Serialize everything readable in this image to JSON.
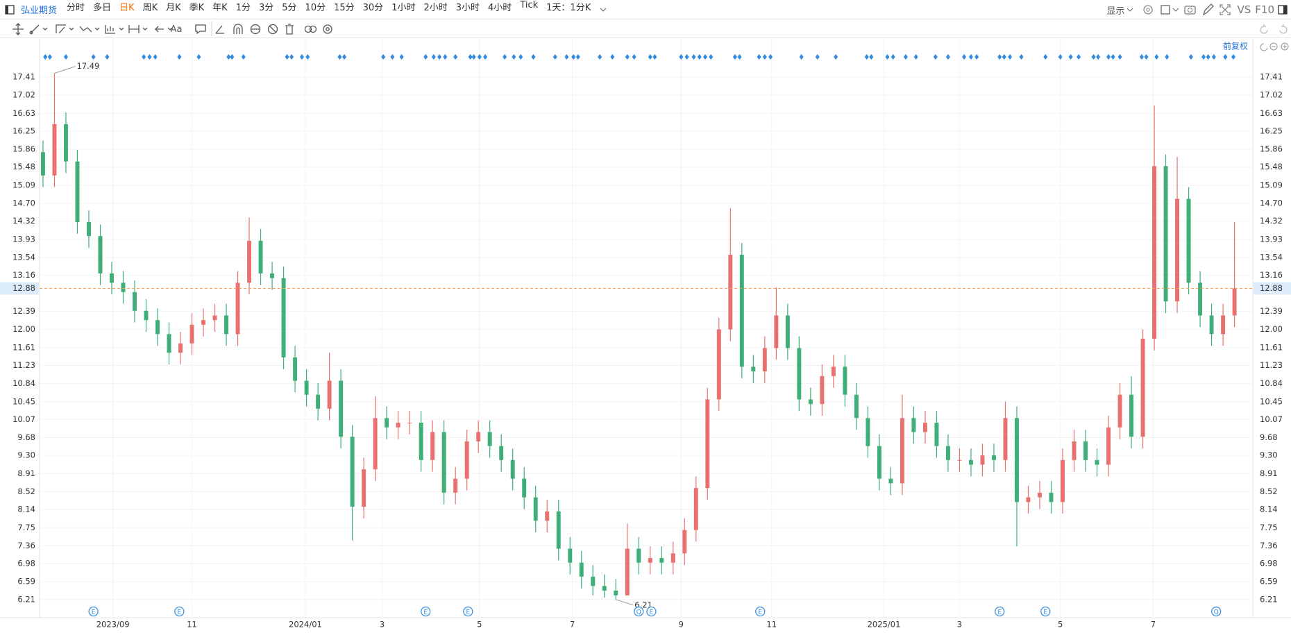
{
  "toolbar": {
    "symbol": "弘业期货",
    "periods": [
      "分时",
      "多日",
      "日K",
      "周K",
      "月K",
      "季K",
      "年K",
      "1分",
      "3分",
      "5分",
      "10分",
      "15分",
      "30分",
      "1小时",
      "2小时",
      "3小时",
      "4小时",
      "Tick",
      "1天：1分K"
    ],
    "active_period": 2,
    "display": "显示",
    "vs": "VS",
    "f10": "F10",
    "text_tool": "Aa"
  },
  "chart_data": {
    "type": "candlestick",
    "adjustment": "前复权",
    "up_color": "#e8716f",
    "down_color": "#3fae78",
    "grid": true,
    "ohlc": {
      "open": [
        15.8,
        15.3,
        16.4,
        15.6,
        14.3,
        14.0,
        13.2,
        13.0,
        12.8,
        12.4,
        12.2,
        11.9,
        11.5,
        11.7,
        12.1,
        12.2,
        12.3,
        11.9,
        13.0,
        13.9,
        13.2,
        13.1,
        11.4,
        10.9,
        10.6,
        10.3,
        10.9,
        9.7,
        8.2,
        9.0,
        10.1,
        9.9,
        10.0,
        10.0,
        9.2,
        9.8,
        8.5,
        8.8,
        9.6,
        9.8,
        9.5,
        9.2,
        8.8,
        8.4,
        7.9,
        8.1,
        7.3,
        7.0,
        6.7,
        6.5,
        6.4,
        6.3,
        7.3,
        7.0,
        7.1,
        7.0,
        7.2,
        7.7,
        8.6,
        10.5,
        12.0,
        13.6,
        11.2,
        11.1,
        11.6,
        12.3,
        11.6,
        10.5,
        10.4,
        11.0,
        11.2,
        10.6,
        10.1,
        9.5,
        8.8,
        8.7,
        10.1,
        9.8,
        10.0,
        9.5,
        9.2,
        9.2,
        9.1,
        9.3,
        9.2,
        10.1,
        8.3,
        8.4,
        8.5,
        8.3,
        9.2,
        9.6,
        9.2,
        9.1,
        9.9,
        10.6,
        9.7,
        11.8,
        15.5,
        12.6,
        14.8,
        13.0,
        12.3,
        11.9,
        12.3
      ],
      "high": [
        16.05,
        17.49,
        16.65,
        15.85,
        14.55,
        14.25,
        13.45,
        13.25,
        13.05,
        12.65,
        12.45,
        12.15,
        11.95,
        12.35,
        12.45,
        12.55,
        12.55,
        13.25,
        14.4,
        14.15,
        13.45,
        13.35,
        11.65,
        11.15,
        10.85,
        11.5,
        11.15,
        9.95,
        9.25,
        10.57,
        10.35,
        10.25,
        10.25,
        10.25,
        10.05,
        10.05,
        9.05,
        9.85,
        10.05,
        10.05,
        9.75,
        9.45,
        9.05,
        8.65,
        8.35,
        8.35,
        7.55,
        7.25,
        6.95,
        6.75,
        6.65,
        7.84,
        7.55,
        7.35,
        7.35,
        7.45,
        7.95,
        8.85,
        10.75,
        12.25,
        14.6,
        13.85,
        11.45,
        11.85,
        12.9,
        12.55,
        11.85,
        10.75,
        11.25,
        11.45,
        11.45,
        10.85,
        10.35,
        9.75,
        9.05,
        10.6,
        10.35,
        10.25,
        10.25,
        9.75,
        9.45,
        9.45,
        9.55,
        9.55,
        10.45,
        10.35,
        8.65,
        8.75,
        8.75,
        9.45,
        9.85,
        9.85,
        9.45,
        10.15,
        10.85,
        11.0,
        12.0,
        16.8,
        15.75,
        15.7,
        15.05,
        13.25,
        12.55,
        12.55,
        14.3
      ],
      "low": [
        15.05,
        15.05,
        15.35,
        14.05,
        13.75,
        12.95,
        12.75,
        12.55,
        12.15,
        11.95,
        11.65,
        11.25,
        11.25,
        11.45,
        11.85,
        11.95,
        11.65,
        11.65,
        12.75,
        12.95,
        12.85,
        11.15,
        10.65,
        10.35,
        10.05,
        10.05,
        9.45,
        7.48,
        7.95,
        8.75,
        9.65,
        9.65,
        9.75,
        8.95,
        8.95,
        8.25,
        8.25,
        8.55,
        9.35,
        9.25,
        8.95,
        8.55,
        8.15,
        7.65,
        7.65,
        7.05,
        6.75,
        6.45,
        6.3,
        6.25,
        6.21,
        6.3,
        6.75,
        6.75,
        6.75,
        6.75,
        6.95,
        7.45,
        8.35,
        10.25,
        11.75,
        10.95,
        10.85,
        10.85,
        11.35,
        11.35,
        10.25,
        10.15,
        10.15,
        10.75,
        10.35,
        9.85,
        9.25,
        8.55,
        8.45,
        8.45,
        9.55,
        9.55,
        9.25,
        8.95,
        8.95,
        8.85,
        8.85,
        8.95,
        8.95,
        7.35,
        8.05,
        8.15,
        8.05,
        8.05,
        8.95,
        8.95,
        8.85,
        8.85,
        9.65,
        9.45,
        9.45,
        11.55,
        12.35,
        12.35,
        12.75,
        12.05,
        11.65,
        11.65,
        12.05
      ],
      "close": [
        15.3,
        16.4,
        15.6,
        14.3,
        14.0,
        13.2,
        13.0,
        12.8,
        12.4,
        12.2,
        11.9,
        11.5,
        11.7,
        12.1,
        12.2,
        12.3,
        11.9,
        13.0,
        13.9,
        13.2,
        13.1,
        11.4,
        10.9,
        10.6,
        10.3,
        10.9,
        9.7,
        8.2,
        9.0,
        10.1,
        9.9,
        10.0,
        10.0,
        9.2,
        9.8,
        8.5,
        8.8,
        9.6,
        9.8,
        9.5,
        9.2,
        8.8,
        8.4,
        7.9,
        8.1,
        7.3,
        7.0,
        6.7,
        6.5,
        6.4,
        6.3,
        7.3,
        7.0,
        7.1,
        7.0,
        7.2,
        7.7,
        8.6,
        10.5,
        12.0,
        13.6,
        11.2,
        11.1,
        11.6,
        12.3,
        11.6,
        10.5,
        10.4,
        11.0,
        11.2,
        10.6,
        10.1,
        9.5,
        8.8,
        8.7,
        10.1,
        9.8,
        10.0,
        9.5,
        9.2,
        9.2,
        9.1,
        9.3,
        9.2,
        10.1,
        8.3,
        8.4,
        8.5,
        8.3,
        9.2,
        9.6,
        9.2,
        9.1,
        9.9,
        10.6,
        9.7,
        11.8,
        15.5,
        12.6,
        14.8,
        13.0,
        12.3,
        11.9,
        12.3,
        12.88
      ]
    },
    "max_index": 1,
    "min_index": 50,
    "xlim": [
      -0.3,
      105.6
    ],
    "xticks": [
      {
        "value": 6.1,
        "label": "2023/09"
      },
      {
        "value": 13.0,
        "label": "11"
      },
      {
        "value": 22.9,
        "label": "2024/01"
      },
      {
        "value": 29.6,
        "label": "3"
      },
      {
        "value": 38.1,
        "label": "5"
      },
      {
        "value": 46.2,
        "label": "7"
      },
      {
        "value": 55.7,
        "label": "9"
      },
      {
        "value": 63.6,
        "label": "11"
      },
      {
        "value": 73.4,
        "label": "2025/01"
      },
      {
        "value": 80.0,
        "label": "3"
      },
      {
        "value": 88.8,
        "label": "5"
      },
      {
        "value": 96.9,
        "label": "7"
      }
    ],
    "ylim": [
      5.82,
      17.96
    ],
    "yticks": [
      6.21,
      6.59,
      6.98,
      7.36,
      7.75,
      8.14,
      8.52,
      8.91,
      {
        "value": 9.3,
        "label": "9.30"
      },
      9.68,
      10.07,
      10.45,
      10.84,
      11.23,
      11.61,
      {
        "value": 12.0,
        "label": "12.00"
      },
      12.39,
      13.16,
      13.54,
      13.93,
      14.32,
      {
        "value": 14.7,
        "label": "14.70"
      },
      15.09,
      15.48,
      15.86,
      16.25,
      16.63,
      17.02,
      17.41
    ],
    "events": [
      {
        "x": 4.4,
        "label": "E"
      },
      {
        "x": 11.9,
        "label": "E"
      },
      {
        "x": 33.4,
        "label": "E"
      },
      {
        "x": 37.1,
        "label": "E"
      },
      {
        "x": 52.0,
        "label": "Q"
      },
      {
        "x": 53.1,
        "label": "E"
      },
      {
        "x": 62.6,
        "label": "E"
      },
      {
        "x": 83.5,
        "label": "E"
      },
      {
        "x": 87.5,
        "label": "E"
      },
      {
        "x": 102.4,
        "label": "Q"
      }
    ],
    "top_markers": [
      0.2,
      0.6,
      2.0,
      4.4,
      5.6,
      8.8,
      9.3,
      9.8,
      11.9,
      13.6,
      16.2,
      16.5,
      17.5,
      21.3,
      21.7,
      22.6,
      23.1,
      25.9,
      26.3,
      29.7,
      30.5,
      31.3,
      33.4,
      34.1,
      34.6,
      35.1,
      36.0,
      37.3,
      37.6,
      38.1,
      38.6,
      40.3,
      41.1,
      41.7,
      42.8,
      44.7,
      45.7,
      46.3,
      46.7,
      48.6,
      49.7,
      51.0,
      51.6,
      53.0,
      53.4,
      55.7,
      56.2,
      56.8,
      57.3,
      57.8,
      58.3,
      60.4,
      60.8,
      62.5,
      63.0,
      63.5,
      66.2,
      67.6,
      69.2,
      71.9,
      72.3,
      73.7,
      74.2,
      75.3,
      76.2,
      77.9,
      79.0,
      80.4,
      81.0,
      81.5,
      83.5,
      83.9,
      84.4,
      85.4,
      87.5,
      88.8,
      89.7,
      90.4,
      91.7,
      92.1,
      93.0,
      93.4,
      94.0,
      95.9,
      96.3,
      97.2,
      98.1,
      100.2,
      101.3,
      101.7,
      102.2,
      103.2,
      103.9
    ]
  }
}
